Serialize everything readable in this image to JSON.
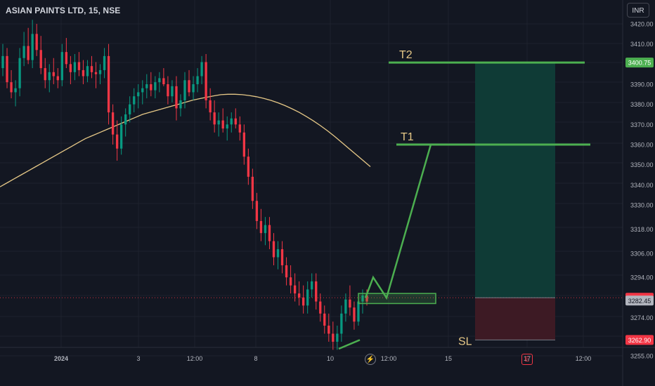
{
  "header": {
    "title": "ASIAN PAINTS LTD, 15, NSE",
    "currency": "INR"
  },
  "colors": {
    "background": "#131722",
    "grid": "#1e222d",
    "axis_text": "#b2b5be",
    "up_candle": "#089981",
    "down_candle": "#f23645",
    "moving_average": "#e6c887",
    "drawing": "#4caf50",
    "profit_zone": "#0f3b36",
    "loss_zone": "#3d1a24",
    "price_badge_green": "#4caf50",
    "price_badge_red": "#f23645",
    "last_price_badge": "#b2b5be",
    "label_text": "#e6c887"
  },
  "bottom_icons": {
    "flash": "⚡",
    "earnings": "E"
  },
  "chart_data": {
    "type": "candlestick",
    "symbol": "ASIAN PAINTS LTD",
    "interval": "15",
    "exchange": "NSE",
    "ylim": [
      3251,
      3428
    ],
    "y_ticks": [
      3255.0,
      3262.9,
      3274.0,
      3282.45,
      3283.85,
      3294.0,
      3306.0,
      3318.0,
      3330.0,
      3340.0,
      3350.0,
      3360.0,
      3370.0,
      3380.0,
      3390.0,
      3400.75,
      3410.0,
      3420.0
    ],
    "y_tick_labels": [
      "3255.00",
      "3262.90",
      "3274.00",
      "3282.45",
      "3283.85",
      "3294.00",
      "3306.00",
      "3318.00",
      "3330.00",
      "3340.00",
      "3350.00",
      "3360.00",
      "3370.00",
      "3380.00",
      "3390.00",
      "3400.75",
      "3410.00",
      "3420.00"
    ],
    "plain_tick_labels": [
      "3255.00",
      "3274.00",
      "3294.00",
      "3306.00",
      "3318.00",
      "3330.00",
      "3340.00",
      "3350.00",
      "3360.00",
      "3370.00",
      "3380.00",
      "3390.00",
      "3410.00",
      "3420.00"
    ],
    "x_tick_labels": [
      "2024",
      "3",
      "12:00",
      "8",
      "10",
      "12:00",
      "15",
      "17",
      "12:00"
    ],
    "price_badges": [
      {
        "value": 3400.75,
        "label": "3400.75",
        "style": "green"
      },
      {
        "value": 3283.85,
        "label": "3283.85",
        "style": "red"
      },
      {
        "value": 3282.45,
        "label": "3282.45",
        "style": "last"
      },
      {
        "value": 3262.9,
        "label": "3262.90",
        "style": "red"
      }
    ],
    "last_price": 3283.85,
    "levels": {
      "T2": {
        "label": "T2",
        "value": 3400.75
      },
      "T1": {
        "label": "T1",
        "value": 3360
      },
      "SL": {
        "label": "SL",
        "value": 3262.9
      },
      "entry": 3283.85
    },
    "candles": [
      [
        3398,
        3410,
        3394,
        3404
      ],
      [
        3404,
        3408,
        3388,
        3391
      ],
      [
        3391,
        3397,
        3383,
        3386
      ],
      [
        3386,
        3392,
        3379,
        3388
      ],
      [
        3388,
        3408,
        3384,
        3403
      ],
      [
        3403,
        3416,
        3399,
        3409
      ],
      [
        3409,
        3418,
        3400,
        3402
      ],
      [
        3402,
        3422,
        3398,
        3415
      ],
      [
        3415,
        3420,
        3404,
        3407
      ],
      [
        3407,
        3414,
        3395,
        3398
      ],
      [
        3398,
        3403,
        3388,
        3392
      ],
      [
        3392,
        3400,
        3386,
        3396
      ],
      [
        3396,
        3403,
        3390,
        3394
      ],
      [
        3394,
        3398,
        3388,
        3392
      ],
      [
        3392,
        3410,
        3389,
        3406
      ],
      [
        3406,
        3413,
        3398,
        3400
      ],
      [
        3400,
        3404,
        3390,
        3396
      ],
      [
        3396,
        3405,
        3392,
        3401
      ],
      [
        3401,
        3406,
        3394,
        3397
      ],
      [
        3397,
        3402,
        3390,
        3394
      ],
      [
        3394,
        3402,
        3391,
        3399
      ],
      [
        3399,
        3404,
        3393,
        3396
      ],
      [
        3396,
        3401,
        3388,
        3395
      ],
      [
        3395,
        3400,
        3390,
        3397
      ],
      [
        3397,
        3408,
        3393,
        3404
      ],
      [
        3404,
        3410,
        3370,
        3376
      ],
      [
        3376,
        3380,
        3360,
        3365
      ],
      [
        3365,
        3372,
        3352,
        3358
      ],
      [
        3358,
        3374,
        3355,
        3370
      ],
      [
        3370,
        3378,
        3364,
        3375
      ],
      [
        3375,
        3384,
        3371,
        3380
      ],
      [
        3380,
        3388,
        3376,
        3384
      ],
      [
        3384,
        3390,
        3378,
        3386
      ],
      [
        3386,
        3392,
        3380,
        3388
      ],
      [
        3388,
        3395,
        3383,
        3390
      ],
      [
        3390,
        3396,
        3384,
        3387
      ],
      [
        3387,
        3394,
        3383,
        3391
      ],
      [
        3391,
        3396,
        3386,
        3393
      ],
      [
        3393,
        3398,
        3389,
        3390
      ],
      [
        3390,
        3394,
        3380,
        3384
      ],
      [
        3384,
        3392,
        3381,
        3389
      ],
      [
        3389,
        3394,
        3372,
        3378
      ],
      [
        3378,
        3385,
        3374,
        3382
      ],
      [
        3382,
        3396,
        3378,
        3392
      ],
      [
        3392,
        3397,
        3384,
        3386
      ],
      [
        3386,
        3394,
        3382,
        3390
      ],
      [
        3390,
        3398,
        3386,
        3394
      ],
      [
        3394,
        3404,
        3390,
        3401
      ],
      [
        3401,
        3405,
        3378,
        3382
      ],
      [
        3382,
        3388,
        3372,
        3376
      ],
      [
        3376,
        3382,
        3366,
        3370
      ],
      [
        3370,
        3376,
        3364,
        3372
      ],
      [
        3372,
        3378,
        3366,
        3368
      ],
      [
        3368,
        3374,
        3362,
        3370
      ],
      [
        3370,
        3376,
        3366,
        3373
      ],
      [
        3373,
        3378,
        3368,
        3370
      ],
      [
        3370,
        3374,
        3362,
        3366
      ],
      [
        3366,
        3370,
        3350,
        3354
      ],
      [
        3354,
        3358,
        3340,
        3344
      ],
      [
        3344,
        3348,
        3328,
        3332
      ],
      [
        3332,
        3336,
        3318,
        3322
      ],
      [
        3322,
        3328,
        3312,
        3316
      ],
      [
        3316,
        3324,
        3310,
        3320
      ],
      [
        3320,
        3324,
        3308,
        3312
      ],
      [
        3312,
        3316,
        3300,
        3304
      ],
      [
        3304,
        3312,
        3298,
        3308
      ],
      [
        3308,
        3312,
        3296,
        3300
      ],
      [
        3300,
        3304,
        3290,
        3294
      ],
      [
        3294,
        3300,
        3286,
        3290
      ],
      [
        3290,
        3296,
        3282,
        3286
      ],
      [
        3286,
        3292,
        3280,
        3284
      ],
      [
        3284,
        3290,
        3276,
        3280
      ],
      [
        3280,
        3292,
        3276,
        3288
      ],
      [
        3288,
        3296,
        3284,
        3292
      ],
      [
        3292,
        3296,
        3278,
        3282
      ],
      [
        3282,
        3286,
        3272,
        3276
      ],
      [
        3276,
        3280,
        3266,
        3270
      ],
      [
        3270,
        3276,
        3262,
        3266
      ],
      [
        3266,
        3272,
        3258,
        3262
      ],
      [
        3262,
        3270,
        3258,
        3266
      ],
      [
        3266,
        3280,
        3262,
        3276
      ],
      [
        3276,
        3286,
        3272,
        3283
      ],
      [
        3283,
        3290,
        3275,
        3279
      ],
      [
        3279,
        3282,
        3268,
        3272
      ],
      [
        3272,
        3284,
        3270,
        3282
      ],
      [
        3282,
        3288,
        3276,
        3285
      ],
      [
        3285,
        3288,
        3280,
        3282
      ]
    ],
    "moving_average": [
      3339,
      3341,
      3343,
      3345,
      3347,
      3349,
      3351,
      3353,
      3355,
      3357,
      3359,
      3361,
      3363,
      3364.5,
      3366,
      3367.5,
      3369,
      3370.5,
      3372,
      3373.5,
      3375,
      3376,
      3377,
      3378,
      3379,
      3380,
      3381,
      3382,
      3382.8,
      3383.5,
      3384.2,
      3384.8,
      3385,
      3385,
      3384.8,
      3384.4,
      3383.8,
      3383,
      3382,
      3380.8,
      3379.4,
      3377.8,
      3376,
      3374,
      3371.8,
      3369.4,
      3366.8,
      3364,
      3361,
      3358,
      3355,
      3352,
      3349
    ],
    "drawings": {
      "t2_line": [
        3400.75,
        3400.75
      ],
      "t1_line": [
        3360,
        3360
      ],
      "projection": [
        3283.85,
        3294,
        3283.85,
        3360
      ],
      "bullish_leg": [
        3258.5,
        3262.9
      ],
      "entry_zone": [
        3281,
        3286
      ],
      "profit_zone": [
        3283.85,
        3400.75
      ],
      "loss_zone": [
        3262.9,
        3283.85
      ]
    }
  }
}
